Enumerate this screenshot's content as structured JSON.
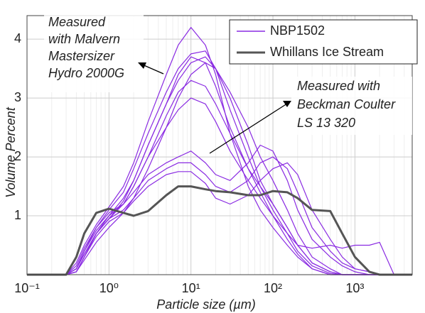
{
  "chart_data": {
    "type": "line",
    "xlabel": "Particle size (µm)",
    "ylabel": "Volume Percent",
    "x": [
      0.1,
      0.2,
      0.3,
      0.4,
      0.5,
      0.7,
      1,
      1.5,
      2,
      3,
      5,
      7,
      10,
      15,
      20,
      30,
      50,
      70,
      100,
      150,
      200,
      300,
      500,
      700,
      1000,
      1500,
      2000,
      3000,
      5000
    ],
    "series": [
      {
        "name": "NBP1502",
        "color": "#8a2be2",
        "curves": [
          [
            0,
            0,
            0,
            0.2,
            0.5,
            0.85,
            1.15,
            1.5,
            1.9,
            2.6,
            3.4,
            3.9,
            4.2,
            3.9,
            3.4,
            2.4,
            1.5,
            1.1,
            0.8,
            0.5,
            0.3,
            0.1,
            0,
            0,
            0,
            0,
            0,
            0,
            0
          ],
          [
            0,
            0,
            0,
            0.15,
            0.45,
            0.8,
            1.1,
            1.4,
            1.8,
            2.4,
            3.1,
            3.5,
            3.75,
            3.8,
            3.5,
            2.8,
            2.0,
            1.5,
            1.1,
            0.7,
            0.4,
            0.15,
            0.02,
            0,
            0,
            0,
            0,
            0,
            0
          ],
          [
            0,
            0,
            0,
            0.1,
            0.4,
            0.75,
            1.0,
            1.3,
            1.6,
            2.2,
            2.9,
            3.3,
            3.6,
            3.7,
            3.5,
            3.0,
            2.2,
            1.6,
            1.2,
            0.8,
            0.5,
            0.2,
            0.05,
            0,
            0,
            0,
            0,
            0,
            0
          ],
          [
            0,
            0,
            0,
            0.1,
            0.35,
            0.7,
            0.95,
            1.2,
            1.5,
            2.0,
            2.7,
            3.1,
            3.3,
            3.2,
            2.9,
            2.4,
            1.8,
            1.5,
            1.2,
            0.8,
            0.5,
            0.2,
            0.05,
            0,
            0,
            0,
            0,
            0,
            0
          ],
          [
            0,
            0,
            0,
            0.1,
            0.4,
            0.8,
            1.05,
            1.2,
            1.4,
            1.7,
            1.9,
            2.0,
            2.1,
            1.9,
            1.7,
            1.6,
            1.9,
            2.2,
            2.1,
            1.6,
            1.1,
            0.6,
            0.3,
            0.15,
            0.05,
            0,
            0,
            0,
            0
          ],
          [
            0,
            0,
            0,
            0.05,
            0.3,
            0.7,
            0.95,
            1.1,
            1.3,
            1.6,
            1.8,
            1.9,
            1.9,
            1.7,
            1.5,
            1.4,
            1.6,
            1.9,
            2.0,
            1.8,
            1.4,
            0.8,
            0.4,
            0.2,
            0.1,
            0.05,
            0,
            0,
            0
          ],
          [
            0,
            0,
            0,
            0.05,
            0.3,
            0.65,
            0.9,
            1.05,
            1.25,
            1.5,
            1.7,
            1.75,
            1.75,
            1.55,
            1.3,
            1.2,
            1.35,
            1.6,
            1.8,
            1.9,
            1.7,
            1.1,
            0.6,
            0.3,
            0.1,
            0.05,
            0,
            0,
            0
          ],
          [
            0,
            0,
            0,
            0.05,
            0.3,
            0.7,
            1.0,
            1.2,
            1.5,
            2.0,
            2.5,
            2.8,
            3.0,
            2.9,
            2.6,
            2.1,
            1.6,
            1.3,
            1.0,
            0.7,
            0.5,
            0.45,
            0.5,
            0.45,
            0.5,
            0.5,
            0.55,
            0,
            0
          ],
          [
            0,
            0,
            0,
            0.05,
            0.25,
            0.55,
            0.8,
            1.05,
            1.3,
            1.8,
            2.5,
            3.0,
            3.4,
            3.6,
            3.5,
            3.1,
            2.5,
            2.0,
            1.6,
            1.1,
            0.7,
            0.3,
            0.1,
            0,
            0,
            0,
            0,
            0,
            0
          ],
          [
            0,
            0,
            0,
            0.1,
            0.35,
            0.7,
            0.95,
            1.25,
            1.6,
            2.2,
            2.9,
            3.4,
            3.7,
            3.6,
            3.2,
            2.5,
            1.8,
            1.4,
            1.0,
            0.6,
            0.35,
            0.1,
            0,
            0,
            0,
            0,
            0,
            0,
            0
          ]
        ]
      },
      {
        "name": "Whillans Ice Stream",
        "color": "#555555",
        "values": [
          0,
          0,
          0,
          0.3,
          0.7,
          1.05,
          1.12,
          1.05,
          1.0,
          1.08,
          1.35,
          1.5,
          1.5,
          1.45,
          1.42,
          1.4,
          1.35,
          1.35,
          1.42,
          1.4,
          1.3,
          1.1,
          1.08,
          0.7,
          0.3,
          0.05,
          0,
          0,
          0
        ]
      }
    ],
    "xlim": [
      0.1,
      5000
    ],
    "log_x": true,
    "xticks": [
      {
        "value": 0.1,
        "label": "10⁻¹"
      },
      {
        "value": 1,
        "label": "10⁰"
      },
      {
        "value": 10,
        "label": "10¹"
      },
      {
        "value": 100,
        "label": "10²"
      },
      {
        "value": 1000,
        "label": "10³"
      }
    ],
    "ylim": [
      0,
      4.4
    ],
    "yticks": [
      1,
      2,
      3,
      4
    ],
    "grid": true,
    "annotations": [
      {
        "lines": [
          "Measured",
          "with Malvern",
          "Mastersizer",
          "Hydro 2000G"
        ]
      },
      {
        "lines": [
          "Measured with",
          "Beckman Coulter",
          "LS 13 320"
        ]
      }
    ]
  }
}
